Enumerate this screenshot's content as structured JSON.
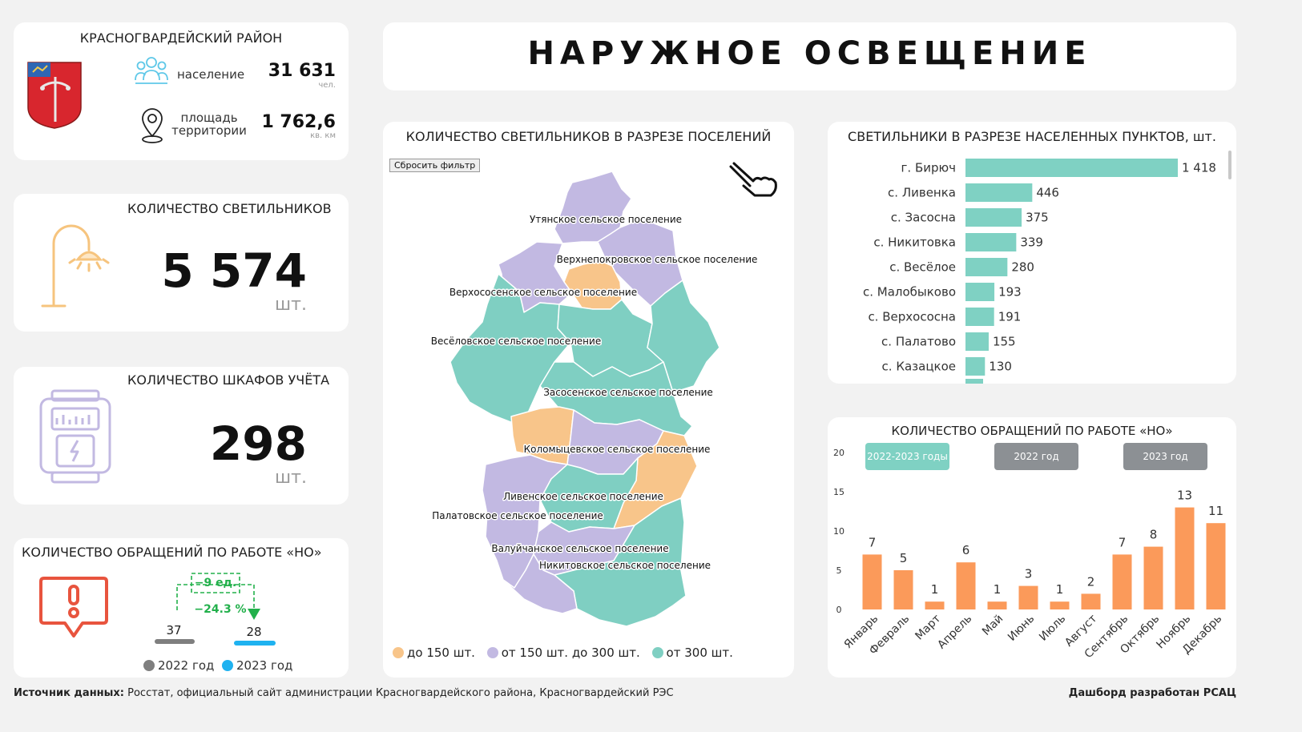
{
  "district": {
    "name": "КРАСНОГВАРДЕЙСКИЙ РАЙОН",
    "population_label": "население",
    "population_value": "31 631",
    "population_unit": "чел.",
    "area_label_1": "площадь",
    "area_label_2": "территории",
    "area_value": "1 762,6",
    "area_unit": "кв. км"
  },
  "page_title": "НАРУЖНОЕ ОСВЕЩЕНИЕ",
  "lamps_card": {
    "title": "КОЛИЧЕСТВО СВЕТИЛЬНИКОВ",
    "value": "5 574",
    "unit": "шт."
  },
  "cabinets_card": {
    "title": "КОЛИЧЕСТВО ШКАФОВ УЧЁТА",
    "value": "298",
    "unit": "шт."
  },
  "requests_card": {
    "title": "КОЛИЧЕСТВО ОБРАЩЕНИЙ ПО РАБОТЕ «НО»",
    "diff_abs": "−9 ед.",
    "diff_pct": "−24.3 %",
    "value_2022": "37",
    "value_2023": "28",
    "legend_2022": "2022 год",
    "legend_2023": "2023 год",
    "color_2022": "#7f7f7f",
    "color_2023": "#1fb2f0",
    "diff_color": "#22b04b"
  },
  "map_card": {
    "title": "КОЛИЧЕСТВО СВЕТИЛЬНИКОВ В РАЗРЕЗЕ ПОСЕЛЕНИЙ",
    "reset_button": "Сбросить фильтр",
    "icon": "hand-pointer-icon",
    "settlements": [
      "Утянское сельское поселение",
      "Верхнепокровское сельское поселение",
      "Верхососенское сельское поселение",
      "Весёловское сельское поселение",
      "Засосенское сельское поселение",
      "Коломыцевское сельское поселение",
      "Ливенское сельское поселение",
      "Палатовское сельское поселение",
      "Валуйчанское сельское поселение",
      "Никитовское сельское поселение"
    ],
    "legend": [
      "до 150 шт.",
      "от 150 шт. до 300 шт.",
      "от 300 шт."
    ],
    "colors": {
      "low": "#f8c58a",
      "mid": "#c2b9e2",
      "high": "#7fcfc2"
    }
  },
  "footer": {
    "source_label": "Источник данных:",
    "source_text": "Росстат, официальный сайт администрации Красногвардейского района, Красногвардейский РЭС",
    "credit": "Дашборд разработан РСАЦ"
  },
  "chart_data": [
    {
      "type": "bar",
      "orientation": "horizontal",
      "title": "СВЕТИЛЬНИКИ В РАЗРЕЗЕ НАСЕЛЕННЫХ ПУНКТОВ, шт.",
      "categories": [
        "г. Бирюч",
        "с. Ливенка",
        "с. Засосна",
        "с. Никитовка",
        "с. Весёлое",
        "с. Малобыково",
        "с. Верхососна",
        "с. Палатово",
        "с. Казацкое"
      ],
      "values": [
        1418,
        446,
        375,
        339,
        280,
        193,
        191,
        155,
        130
      ],
      "value_labels": [
        "1 418",
        "446",
        "375",
        "339",
        "280",
        "193",
        "191",
        "155",
        "130"
      ],
      "color": "#7fd1c3"
    },
    {
      "type": "bar",
      "title": "КОЛИЧЕСТВО ОБРАЩЕНИЙ ПО РАБОТЕ «НО»",
      "tabs": [
        "2022-2023 годы",
        "2022 год",
        "2023 год"
      ],
      "tab_colors": {
        "active": "#7fd1c3",
        "inactive": "#8c9094"
      },
      "categories": [
        "Январь",
        "Февраль",
        "Март",
        "Апрель",
        "Май",
        "Июнь",
        "Июль",
        "Август",
        "Сентябрь",
        "Октябрь",
        "Ноябрь",
        "Декабрь"
      ],
      "values": [
        7,
        5,
        1,
        6,
        1,
        3,
        1,
        2,
        7,
        8,
        13,
        11
      ],
      "ylim": [
        0,
        20
      ],
      "yticks": [
        "0",
        "5",
        "10",
        "15",
        "20"
      ],
      "color": "#fb9a5a"
    }
  ]
}
